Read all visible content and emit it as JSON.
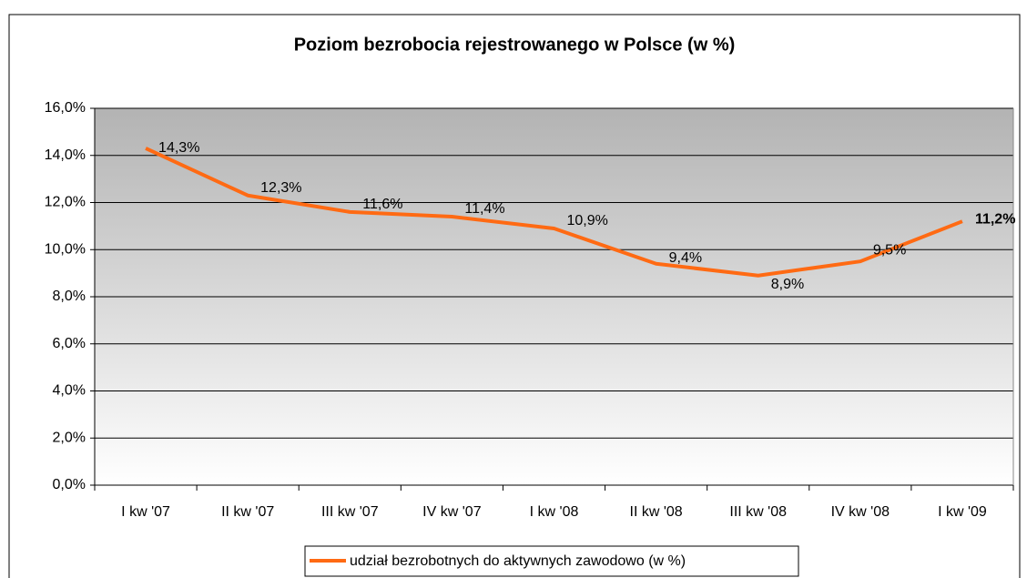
{
  "chart_data": {
    "type": "line",
    "title": "Poziom bezrobocia rejestrowanego w Polsce (w %)",
    "categories": [
      "I kw '07",
      "II kw '07",
      "III kw '07",
      "IV kw '07",
      "I kw '08",
      "II kw '08",
      "III kw '08",
      "IV kw '08",
      "I kw '09"
    ],
    "series": [
      {
        "name": "udział bezrobotnych do aktywnych zawodowo (w %)",
        "color": "#ff6a13",
        "values": [
          14.3,
          12.3,
          11.6,
          11.4,
          10.9,
          9.4,
          8.9,
          9.5,
          11.2
        ],
        "value_labels": [
          "14,3%",
          "12,3%",
          "11,6%",
          "11,4%",
          "10,9%",
          "9,4%",
          "8,9%",
          "9,5%",
          "11,2%"
        ]
      }
    ],
    "ylim": [
      0,
      16
    ],
    "yticks": [
      {
        "value": 0,
        "label": "0,0%"
      },
      {
        "value": 2,
        "label": "2,0%"
      },
      {
        "value": 4,
        "label": "4,0%"
      },
      {
        "value": 6,
        "label": "6,0%"
      },
      {
        "value": 8,
        "label": "8,0%"
      },
      {
        "value": 10,
        "label": "10,0%"
      },
      {
        "value": 12,
        "label": "12,0%"
      },
      {
        "value": 14,
        "label": "14,0%"
      },
      {
        "value": 16,
        "label": "16,0%"
      }
    ],
    "grid": true,
    "legend": "bottom"
  }
}
